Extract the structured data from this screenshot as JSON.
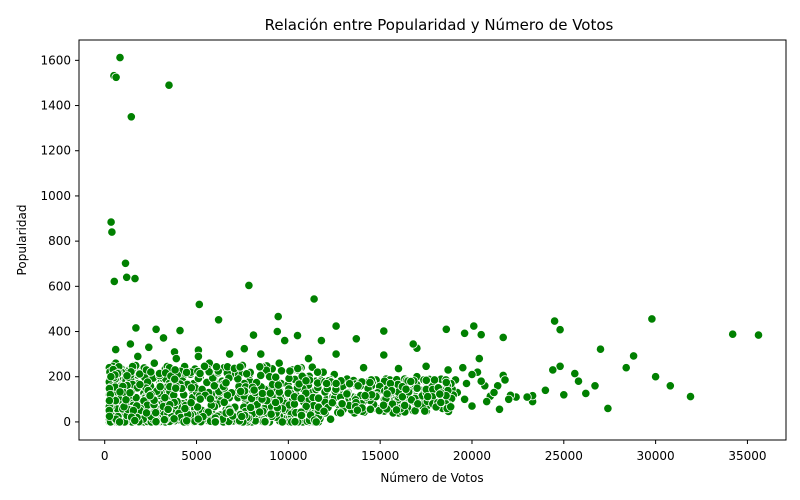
{
  "chart_data": {
    "type": "scatter",
    "title": "Relación entre Popularidad y Número de Votos",
    "xlabel": "Número de Votos",
    "ylabel": "Popularidad",
    "xlim": [
      -1400,
      37100
    ],
    "ylim": [
      -80,
      1690
    ],
    "xticks": [
      0,
      5000,
      10000,
      15000,
      20000,
      25000,
      30000,
      35000
    ],
    "yticks": [
      0,
      200,
      400,
      600,
      800,
      1000,
      1200,
      1400,
      1600
    ],
    "grid": false,
    "legend": "none",
    "marker_color": "#008000",
    "marker_edge_color": "#ffffff",
    "points": [
      [
        830,
        1612
      ],
      [
        500,
        1532
      ],
      [
        620,
        1525
      ],
      [
        3500,
        1490
      ],
      [
        1450,
        1350
      ],
      [
        350,
        884
      ],
      [
        390,
        840
      ],
      [
        1130,
        702
      ],
      [
        1200,
        640
      ],
      [
        1650,
        634
      ],
      [
        520,
        622
      ],
      [
        7850,
        604
      ],
      [
        11400,
        544
      ],
      [
        5150,
        520
      ],
      [
        9450,
        466
      ],
      [
        29800,
        456
      ],
      [
        6200,
        452
      ],
      [
        24500,
        446
      ],
      [
        12600,
        424
      ],
      [
        20100,
        424
      ],
      [
        18600,
        410
      ],
      [
        24800,
        408
      ],
      [
        2800,
        410
      ],
      [
        1700,
        416
      ],
      [
        20500,
        386
      ],
      [
        34200,
        388
      ],
      [
        35600,
        384
      ],
      [
        15200,
        402
      ],
      [
        19600,
        392
      ],
      [
        21700,
        374
      ],
      [
        13700,
        368
      ],
      [
        9400,
        400
      ],
      [
        8100,
        384
      ],
      [
        10500,
        382
      ],
      [
        4100,
        404
      ],
      [
        3200,
        372
      ],
      [
        1400,
        345
      ],
      [
        27000,
        322
      ],
      [
        28800,
        292
      ],
      [
        17000,
        326
      ],
      [
        16800,
        345
      ],
      [
        11800,
        360
      ],
      [
        12600,
        300
      ],
      [
        15200,
        296
      ],
      [
        9800,
        360
      ],
      [
        7600,
        324
      ],
      [
        6800,
        300
      ],
      [
        5100,
        318
      ],
      [
        3800,
        310
      ],
      [
        2400,
        330
      ],
      [
        600,
        320
      ],
      [
        1800,
        290
      ],
      [
        25600,
        214
      ],
      [
        25800,
        180
      ],
      [
        26200,
        126
      ],
      [
        26700,
        160
      ],
      [
        28400,
        240
      ],
      [
        30800,
        160
      ],
      [
        30000,
        200
      ],
      [
        31900,
        112
      ],
      [
        27400,
        60
      ],
      [
        24000,
        140
      ],
      [
        24800,
        246
      ],
      [
        23300,
        90
      ],
      [
        23300,
        116
      ],
      [
        22400,
        110
      ],
      [
        22100,
        118
      ],
      [
        21700,
        206
      ],
      [
        21800,
        186
      ],
      [
        21500,
        56
      ],
      [
        21400,
        160
      ],
      [
        21000,
        114
      ],
      [
        20700,
        160
      ],
      [
        20500,
        180
      ],
      [
        20400,
        280
      ],
      [
        20300,
        220
      ],
      [
        20000,
        210
      ],
      [
        19700,
        170
      ],
      [
        19500,
        240
      ],
      [
        19100,
        186
      ],
      [
        19000,
        120
      ],
      [
        18800,
        126
      ],
      [
        18700,
        230
      ],
      [
        18500,
        100
      ],
      [
        18200,
        150
      ],
      [
        18000,
        80
      ],
      [
        17800,
        182
      ],
      [
        17700,
        124
      ],
      [
        17500,
        246
      ],
      [
        17200,
        98
      ],
      [
        17000,
        200
      ],
      [
        16800,
        110
      ],
      [
        16500,
        90
      ],
      [
        16200,
        160
      ],
      [
        16000,
        236
      ],
      [
        15800,
        120
      ],
      [
        15600,
        50
      ],
      [
        15400,
        180
      ],
      [
        15100,
        140
      ],
      [
        14800,
        120
      ],
      [
        14600,
        180
      ],
      [
        14400,
        100
      ],
      [
        14100,
        240
      ],
      [
        13900,
        70
      ],
      [
        13700,
        160
      ],
      [
        13500,
        110
      ],
      [
        13200,
        190
      ],
      [
        12900,
        140
      ],
      [
        12700,
        80
      ],
      [
        12500,
        210
      ],
      [
        12300,
        12
      ],
      [
        12100,
        100
      ],
      [
        11900,
        220
      ],
      [
        11700,
        60
      ],
      [
        11500,
        180
      ],
      [
        11300,
        130
      ],
      [
        11100,
        280
      ],
      [
        10900,
        90
      ],
      [
        10700,
        240
      ],
      [
        10500,
        160
      ],
      [
        10300,
        70
      ],
      [
        10100,
        190
      ],
      [
        9900,
        110
      ],
      [
        9700,
        40
      ],
      [
        9500,
        260
      ],
      [
        9300,
        150
      ],
      [
        9100,
        90
      ],
      [
        8900,
        210
      ],
      [
        8700,
        60
      ],
      [
        8500,
        300
      ],
      [
        8300,
        130
      ],
      [
        8100,
        20
      ],
      [
        7900,
        180
      ],
      [
        7700,
        90
      ],
      [
        7500,
        250
      ],
      [
        7300,
        140
      ],
      [
        7100,
        60
      ],
      [
        6900,
        200
      ],
      [
        6700,
        110
      ],
      [
        6500,
        240
      ],
      [
        6300,
        30
      ],
      [
        6100,
        170
      ],
      [
        5900,
        90
      ],
      [
        5700,
        260
      ],
      [
        5500,
        130
      ],
      [
        5300,
        50
      ],
      [
        5100,
        290
      ],
      [
        4900,
        160
      ],
      [
        4700,
        70
      ],
      [
        4500,
        220
      ],
      [
        4300,
        120
      ],
      [
        4100,
        40
      ],
      [
        3900,
        280
      ],
      [
        3700,
        150
      ],
      [
        3500,
        80
      ],
      [
        3300,
        230
      ],
      [
        3100,
        110
      ],
      [
        2900,
        30
      ],
      [
        2700,
        260
      ],
      [
        2500,
        140
      ],
      [
        2300,
        60
      ],
      [
        2100,
        200
      ],
      [
        1900,
        90
      ],
      [
        1700,
        170
      ],
      [
        1500,
        40
      ],
      [
        1300,
        230
      ],
      [
        1100,
        120
      ],
      [
        900,
        60
      ],
      [
        700,
        180
      ],
      [
        500,
        90
      ],
      [
        400,
        30
      ],
      [
        350,
        140
      ],
      [
        300,
        10
      ],
      [
        600,
        260
      ],
      [
        800,
        40
      ],
      [
        1000,
        200
      ],
      [
        1200,
        10
      ],
      [
        1400,
        100
      ],
      [
        1600,
        250
      ],
      [
        2000,
        20
      ],
      [
        2200,
        150
      ],
      [
        2600,
        80
      ],
      [
        3000,
        170
      ],
      [
        3400,
        20
      ],
      [
        3600,
        130
      ],
      [
        4000,
        190
      ],
      [
        4400,
        50
      ],
      [
        4800,
        130
      ],
      [
        5200,
        200
      ],
      [
        5600,
        40
      ],
      [
        6000,
        120
      ],
      [
        6400,
        180
      ],
      [
        6800,
        40
      ],
      [
        7200,
        110
      ],
      [
        7600,
        170
      ],
      [
        8000,
        70
      ],
      [
        8400,
        150
      ],
      [
        8800,
        30
      ],
      [
        9200,
        110
      ],
      [
        9600,
        170
      ],
      [
        10000,
        50
      ],
      [
        10400,
        120
      ],
      [
        10800,
        30
      ],
      [
        11200,
        90
      ],
      [
        11600,
        150
      ],
      [
        12000,
        40
      ],
      [
        12400,
        110
      ],
      [
        12800,
        60
      ],
      [
        13200,
        100
      ],
      [
        13600,
        40
      ],
      [
        14000,
        90
      ],
      [
        14400,
        150
      ],
      [
        14800,
        60
      ],
      [
        15200,
        100
      ],
      [
        15600,
        130
      ],
      [
        16000,
        70
      ],
      [
        16400,
        120
      ],
      [
        16800,
        50
      ],
      [
        17200,
        140
      ],
      [
        17600,
        80
      ],
      [
        18000,
        110
      ],
      [
        18400,
        60
      ],
      [
        18800,
        90
      ],
      [
        19200,
        130
      ],
      [
        19600,
        100
      ],
      [
        20000,
        70
      ],
      [
        20800,
        90
      ],
      [
        21200,
        130
      ],
      [
        22000,
        100
      ],
      [
        23000,
        110
      ],
      [
        24400,
        230
      ],
      [
        25000,
        120
      ]
    ],
    "cluster_seed_note_free": true
  }
}
